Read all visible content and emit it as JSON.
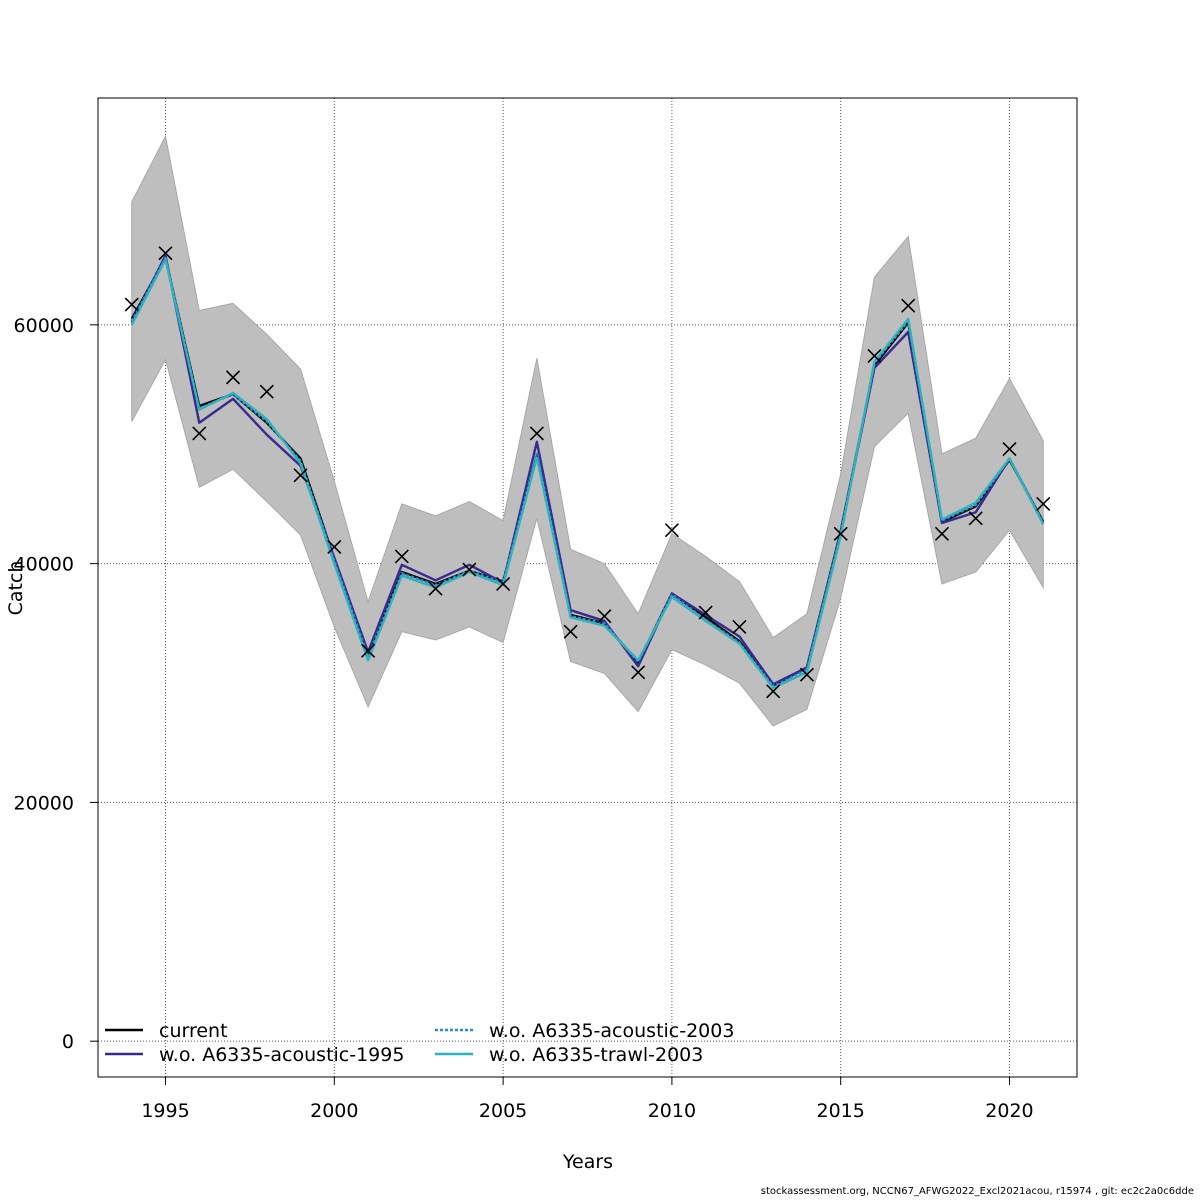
{
  "chart_data": {
    "type": "line",
    "xlabel": "Years",
    "ylabel": "Catch",
    "xlim": [
      1993,
      2022
    ],
    "ylim": [
      -3000,
      79000
    ],
    "x_ticks": [
      1995,
      2000,
      2005,
      2010,
      2015,
      2020
    ],
    "y_ticks": [
      0,
      20000,
      40000,
      60000
    ],
    "grid": true,
    "legend_placement": "bottom-left",
    "x": [
      1994,
      1995,
      1996,
      1997,
      1998,
      1999,
      2000,
      2001,
      2002,
      2003,
      2004,
      2005,
      2006,
      2007,
      2008,
      2009,
      2010,
      2011,
      2012,
      2013,
      2014,
      2015,
      2016,
      2017,
      2018,
      2019,
      2020,
      2021
    ],
    "band": {
      "upper": [
        70300,
        75800,
        61200,
        61800,
        59200,
        56300,
        46900,
        36800,
        45000,
        44000,
        45200,
        43600,
        57200,
        41200,
        40000,
        35800,
        42500,
        40600,
        38500,
        33800,
        35800,
        47500,
        64000,
        67400,
        49200,
        50500,
        55500,
        50300
      ],
      "lower": [
        51900,
        57100,
        46400,
        47900,
        45200,
        42400,
        34700,
        28000,
        34300,
        33600,
        34700,
        33400,
        43800,
        31800,
        30800,
        27600,
        32800,
        31500,
        30000,
        26400,
        27800,
        37100,
        49800,
        52600,
        38300,
        39300,
        42800,
        38000
      ],
      "color": "#bebebe"
    },
    "observed": [
      61700,
      66000,
      50900,
      55600,
      54400,
      47400,
      41400,
      32700,
      40600,
      37900,
      39500,
      38300,
      50900,
      34300,
      35600,
      30900,
      42800,
      35900,
      34700,
      29300,
      30700,
      42500,
      57400,
      61600,
      42500,
      43800,
      49600,
      45000
    ],
    "series": [
      {
        "name": "current",
        "color": "#000000",
        "dash": "",
        "values": [
          60500,
          65600,
          53200,
          54200,
          51800,
          48800,
          40400,
          32400,
          39300,
          38300,
          39400,
          38500,
          49000,
          35700,
          35000,
          31700,
          37500,
          35500,
          33500,
          29800,
          31300,
          42700,
          56600,
          60200,
          43500,
          44800,
          48700,
          43500
        ]
      },
      {
        "name": "w.o. A6335-acoustic-1995",
        "color": "#3a2a8f",
        "dash": "",
        "values": [
          60200,
          65800,
          51800,
          53800,
          50800,
          48200,
          40500,
          32600,
          39900,
          38600,
          39900,
          38400,
          50200,
          36100,
          35200,
          31400,
          37500,
          35700,
          33900,
          29900,
          31300,
          42600,
          56400,
          59400,
          43400,
          44300,
          48800,
          43400
        ]
      },
      {
        "name": "w.o. A6335-acoustic-2003",
        "color": "#1f8fd0",
        "dash": "3,2",
        "values": [
          60300,
          65600,
          53000,
          54200,
          51900,
          48600,
          40200,
          32200,
          39200,
          38200,
          39400,
          38400,
          49200,
          35600,
          35000,
          31800,
          37400,
          35300,
          33400,
          29700,
          31100,
          42500,
          56800,
          60300,
          43600,
          44900,
          48800,
          43400
        ]
      },
      {
        "name": "w.o. A6335-trawl-2003",
        "color": "#2db3bd",
        "dash": "",
        "values": [
          60000,
          65500,
          52900,
          54300,
          52100,
          48400,
          40000,
          31900,
          39000,
          38000,
          39300,
          38200,
          48900,
          35500,
          34800,
          31900,
          37200,
          35200,
          33300,
          29600,
          30900,
          42300,
          56900,
          60500,
          43700,
          45100,
          48800,
          43300
        ]
      }
    ]
  },
  "footer": "stockassessment.org, NCCN67_AFWG2022_Excl2021acou, r15974 , git: ec2c2a0c6dde"
}
